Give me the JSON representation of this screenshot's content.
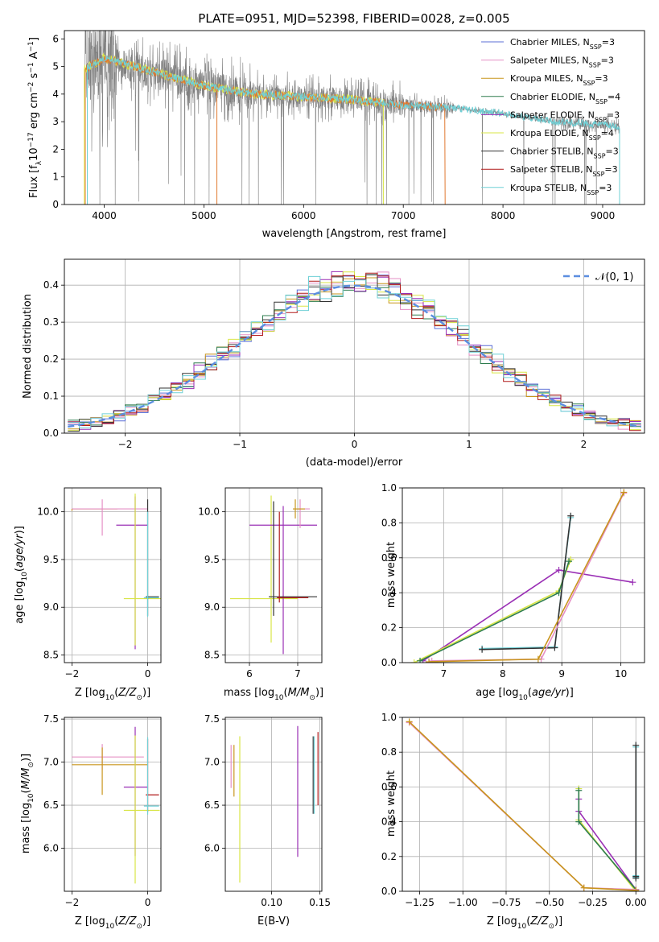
{
  "figure_title": "PLATE=0951, MJD=52398, FIBERID=0028, z=0.005",
  "colors": {
    "Chabrier MILES": "#5b6fd6",
    "Salpeter MILES": "#e58fc4",
    "Kroupa MILES": "#c8951c",
    "Chabrier ELODIE": "#2e7d4f",
    "Salpeter ELODIE": "#9a2fb5",
    "Kroupa ELODIE": "#d8e545",
    "Chabrier STELIB": "#333333",
    "Salpeter STELIB": "#b01a1a",
    "Kroupa STELIB": "#6fd0d6",
    "data": "#808080",
    "model_fit": "#e07830",
    "gauss": "#5b8ee0"
  },
  "chart_data": [
    {
      "id": "spectrum",
      "type": "line",
      "xlabel": "wavelength [Angstrom, rest frame]",
      "ylabel": "Flux [f_λ 10^-17 erg cm^-2 s^-1 A^-1]",
      "xlim": [
        3600,
        9420
      ],
      "ylim": [
        0,
        6.3
      ],
      "xticks": [
        4000,
        5000,
        6000,
        7000,
        8000,
        9000
      ],
      "yticks": [
        0,
        1,
        2,
        3,
        4,
        5,
        6
      ],
      "legend_position": "upper-right",
      "legend": [
        {
          "name": "Chabrier MILES",
          "nssp": "3"
        },
        {
          "name": "Salpeter MILES",
          "nssp": "3"
        },
        {
          "name": "Kroupa MILES",
          "nssp": "3"
        },
        {
          "name": "Chabrier ELODIE",
          "nssp": "4"
        },
        {
          "name": "Salpeter ELODIE",
          "nssp": "3"
        },
        {
          "name": "Kroupa ELODIE",
          "nssp": "4"
        },
        {
          "name": "Chabrier STELIB",
          "nssp": "3"
        },
        {
          "name": "Salpeter STELIB",
          "nssp": "3"
        },
        {
          "name": "Kroupa STELIB",
          "nssp": "3"
        }
      ],
      "continuum": {
        "x": [
          3800,
          3900,
          4000,
          4200,
          4500,
          5000,
          5500,
          6000,
          6500,
          7000,
          7500,
          8000,
          8500,
          9000,
          9170
        ],
        "y": [
          4.9,
          5.1,
          5.3,
          5.1,
          4.8,
          4.3,
          4.0,
          3.9,
          3.8,
          3.6,
          3.5,
          3.3,
          3.0,
          2.9,
          2.8
        ]
      },
      "model_end": {
        "MILES": 7420,
        "ELODIE": 6800,
        "STELIB": 9170
      }
    },
    {
      "id": "residuals",
      "type": "histogram",
      "xlabel": "(data-model)/error",
      "ylabel": "Normed distribution",
      "xlim": [
        -2.53,
        2.53
      ],
      "ylim": [
        0,
        0.47
      ],
      "xticks": [
        -2,
        -1,
        0,
        1,
        2
      ],
      "yticks": [
        0.0,
        0.1,
        0.2,
        0.3,
        0.4
      ],
      "gauss_label": "𝒩(0, 1)",
      "bin_width": 0.1
    },
    {
      "id": "age_vs_Z",
      "type": "scatter",
      "xlabel": "Z [log10(Z/Z☉)]",
      "ylabel": "age [log10(age/yr)]",
      "xlim": [
        -2.2,
        0.35
      ],
      "ylim": [
        8.42,
        10.25
      ],
      "xticks": [
        -2,
        0
      ],
      "yticks": [
        8.5,
        9.0,
        9.5,
        10.0
      ],
      "points": [
        {
          "series": "Kroupa MILES",
          "x": -2.0,
          "y": 10.03,
          "xerr": [
            0,
            1.2
          ],
          "yerr": [
            0.02,
            0.0
          ]
        },
        {
          "series": "Salpeter MILES",
          "x": -1.2,
          "y": 10.03,
          "xerr": [
            0.8,
            1.2
          ],
          "yerr": [
            0.28,
            0.1
          ]
        },
        {
          "series": "Salpeter ELODIE",
          "x": -0.33,
          "y": 9.86,
          "xerr": [
            0.5,
            0.33
          ],
          "yerr": [
            1.3,
            0.3
          ]
        },
        {
          "series": "Kroupa ELODIE",
          "x": -0.33,
          "y": 9.09,
          "xerr": [
            0.3,
            0.68
          ],
          "yerr": [
            0.49,
            1.1
          ]
        },
        {
          "series": "Chabrier STELIB",
          "x": 0.0,
          "y": 9.11,
          "xerr": [
            0.05,
            0.3
          ],
          "yerr": [
            0.2,
            1.02
          ]
        },
        {
          "series": "Kroupa STELIB",
          "x": 0.0,
          "y": 9.1,
          "xerr": [
            0.1,
            0.3
          ],
          "yerr": [
            0.2,
            0.9
          ]
        }
      ]
    },
    {
      "id": "age_vs_mass",
      "type": "scatter",
      "xlabel": "mass [log10(M/M☉)]",
      "ylabel": "",
      "xlim": [
        5.5,
        7.5
      ],
      "ylim": [
        8.42,
        10.25
      ],
      "xticks": [
        6,
        7
      ],
      "yticks": [
        8.5,
        9.0,
        9.5,
        10.0
      ],
      "points": [
        {
          "series": "Kroupa ELODIE",
          "x": 6.45,
          "y": 9.09,
          "xerr": [
            0.85,
            0.55
          ],
          "yerr": [
            0.46,
            1.08
          ]
        },
        {
          "series": "Salpeter ELODIE",
          "x": 6.7,
          "y": 9.86,
          "xerr": [
            0.7,
            0.7
          ],
          "yerr": [
            1.35,
            0.2
          ]
        },
        {
          "series": "Chabrier STELIB",
          "x": 6.5,
          "y": 9.11,
          "xerr": [
            0.1,
            0.9
          ],
          "yerr": [
            0.2,
            1.0
          ]
        },
        {
          "series": "Salpeter MILES",
          "x": 7.05,
          "y": 10.03,
          "xerr": [
            0.1,
            0.2
          ],
          "yerr": [
            0.2,
            0.1
          ]
        },
        {
          "series": "Kroupa MILES",
          "x": 6.95,
          "y": 10.03,
          "xerr": [
            0.05,
            0.2
          ],
          "yerr": [
            0.1,
            0.1
          ]
        },
        {
          "series": "Salpeter STELIB",
          "x": 6.62,
          "y": 9.1,
          "xerr": [
            0.05,
            0.6
          ],
          "yerr": [
            0.05,
            0.9
          ]
        }
      ]
    },
    {
      "id": "mass_weight_vs_age",
      "type": "line",
      "xlabel": "age [log10(age/yr)]",
      "ylabel": "mass weight",
      "xlim": [
        6.3,
        10.4
      ],
      "ylim": [
        0,
        1.0
      ],
      "xticks": [
        7,
        8,
        9,
        10
      ],
      "yticks": [
        0.0,
        0.2,
        0.4,
        0.6,
        0.8,
        1.0
      ],
      "series": [
        {
          "name": "Salpeter ELODIE",
          "x": [
            6.65,
            8.95,
            10.2
          ],
          "y": [
            0.01,
            0.53,
            0.46
          ]
        },
        {
          "name": "Kroupa ELODIE",
          "x": [
            6.5,
            8.95,
            9.15
          ],
          "y": [
            0.0,
            0.41,
            0.59
          ]
        },
        {
          "name": "Chabrier ELODIE",
          "x": [
            6.6,
            8.95,
            9.12
          ],
          "y": [
            0.01,
            0.4,
            0.58
          ]
        },
        {
          "name": "Kroupa STELIB",
          "x": [
            7.65,
            8.88,
            9.15
          ],
          "y": [
            0.08,
            0.09,
            0.83
          ]
        },
        {
          "name": "Chabrier STELIB",
          "x": [
            7.65,
            8.88,
            9.15
          ],
          "y": [
            0.075,
            0.085,
            0.84
          ]
        },
        {
          "name": "Salpeter MILES",
          "x": [
            6.8,
            8.65,
            10.05
          ],
          "y": [
            0.01,
            0.02,
            0.97
          ]
        },
        {
          "name": "Kroupa MILES",
          "x": [
            6.75,
            8.6,
            10.05
          ],
          "y": [
            0.005,
            0.02,
            0.975
          ]
        }
      ]
    },
    {
      "id": "mass_vs_Z",
      "type": "scatter",
      "xlabel": "Z [log10(Z/Z☉)]",
      "ylabel": "mass [log10(M/M☉)]",
      "xlim": [
        -2.2,
        0.35
      ],
      "ylim": [
        5.5,
        7.52
      ],
      "xticks": [
        -2,
        0
      ],
      "yticks": [
        6.0,
        6.5,
        7.0,
        7.5
      ],
      "points": [
        {
          "series": "Salpeter MILES",
          "x": -1.2,
          "y": 7.06,
          "xerr": [
            0.8,
            1.1
          ],
          "yerr": [
            0.15,
            0.15
          ]
        },
        {
          "series": "Kroupa MILES",
          "x": -1.2,
          "y": 6.97,
          "xerr": [
            0.8,
            1.2
          ],
          "yerr": [
            0.35,
            0.2
          ]
        },
        {
          "series": "Salpeter ELODIE",
          "x": -0.33,
          "y": 6.71,
          "xerr": [
            0.3,
            0.33
          ],
          "yerr": [
            0.8,
            0.7
          ]
        },
        {
          "series": "Kroupa ELODIE",
          "x": -0.33,
          "y": 6.44,
          "xerr": [
            0.3,
            0.65
          ],
          "yerr": [
            0.85,
            0.87
          ]
        },
        {
          "series": "Salpeter STELIB",
          "x": 0.0,
          "y": 6.62,
          "xerr": [
            0.05,
            0.3
          ],
          "yerr": [
            0.2,
            0.65
          ]
        },
        {
          "series": "Kroupa STELIB",
          "x": 0.0,
          "y": 6.49,
          "xerr": [
            0.1,
            0.3
          ],
          "yerr": [
            0.1,
            0.8
          ]
        }
      ]
    },
    {
      "id": "mass_vs_ebv",
      "type": "scatter",
      "xlabel": "E(B-V)",
      "ylabel": "",
      "xlim": [
        0.052,
        0.152
      ],
      "ylim": [
        5.5,
        7.52
      ],
      "xticks": [
        0.1,
        0.15
      ],
      "yticks": [
        6.0,
        6.5,
        7.0,
        7.5
      ],
      "bars": [
        {
          "series": "Salpeter MILES",
          "x": 0.058,
          "ylo": 6.7,
          "yhi": 7.2
        },
        {
          "series": "Kroupa MILES",
          "x": 0.061,
          "ylo": 6.6,
          "yhi": 7.2
        },
        {
          "series": "Kroupa ELODIE",
          "x": 0.067,
          "ylo": 5.6,
          "yhi": 7.3
        },
        {
          "series": "Salpeter ELODIE",
          "x": 0.127,
          "ylo": 5.9,
          "yhi": 7.42
        },
        {
          "series": "Chabrier STELIB",
          "x": 0.143,
          "ylo": 6.4,
          "yhi": 7.3
        },
        {
          "series": "Kroupa STELIB",
          "x": 0.144,
          "ylo": 6.4,
          "yhi": 7.3
        },
        {
          "series": "Salpeter STELIB",
          "x": 0.148,
          "ylo": 6.5,
          "yhi": 7.35
        }
      ]
    },
    {
      "id": "mass_weight_vs_Z",
      "type": "line",
      "xlabel": "Z [log10(Z/Z☉)]",
      "ylabel": "mass weight",
      "xlim": [
        -1.35,
        0.05
      ],
      "ylim": [
        0,
        1.0
      ],
      "xticks": [
        -1.25,
        -1.0,
        -0.75,
        -0.5,
        -0.25,
        0.0
      ],
      "yticks": [
        0.0,
        0.2,
        0.4,
        0.6,
        0.8,
        1.0
      ],
      "series": [
        {
          "name": "Salpeter ELODIE",
          "x": [
            -0.33,
            -0.33,
            0.0
          ],
          "y": [
            0.53,
            0.46,
            0.01
          ]
        },
        {
          "name": "Kroupa ELODIE",
          "x": [
            -0.33,
            -0.33,
            0.0
          ],
          "y": [
            0.59,
            0.41,
            0.0
          ]
        },
        {
          "name": "Chabrier ELODIE",
          "x": [
            -0.33,
            -0.33,
            0.0
          ],
          "y": [
            0.58,
            0.4,
            0.01
          ]
        },
        {
          "name": "Kroupa STELIB",
          "x": [
            0.0,
            0.0,
            0.0
          ],
          "y": [
            0.83,
            0.09,
            0.08
          ]
        },
        {
          "name": "Chabrier STELIB",
          "x": [
            0.0,
            0.0,
            0.0
          ],
          "y": [
            0.84,
            0.085,
            0.075
          ]
        },
        {
          "name": "Salpeter MILES",
          "x": [
            -1.31,
            -0.3,
            0.0
          ],
          "y": [
            0.97,
            0.02,
            0.01
          ]
        },
        {
          "name": "Kroupa MILES",
          "x": [
            -1.31,
            -0.3,
            0.0
          ],
          "y": [
            0.975,
            0.02,
            0.005
          ]
        }
      ]
    }
  ]
}
